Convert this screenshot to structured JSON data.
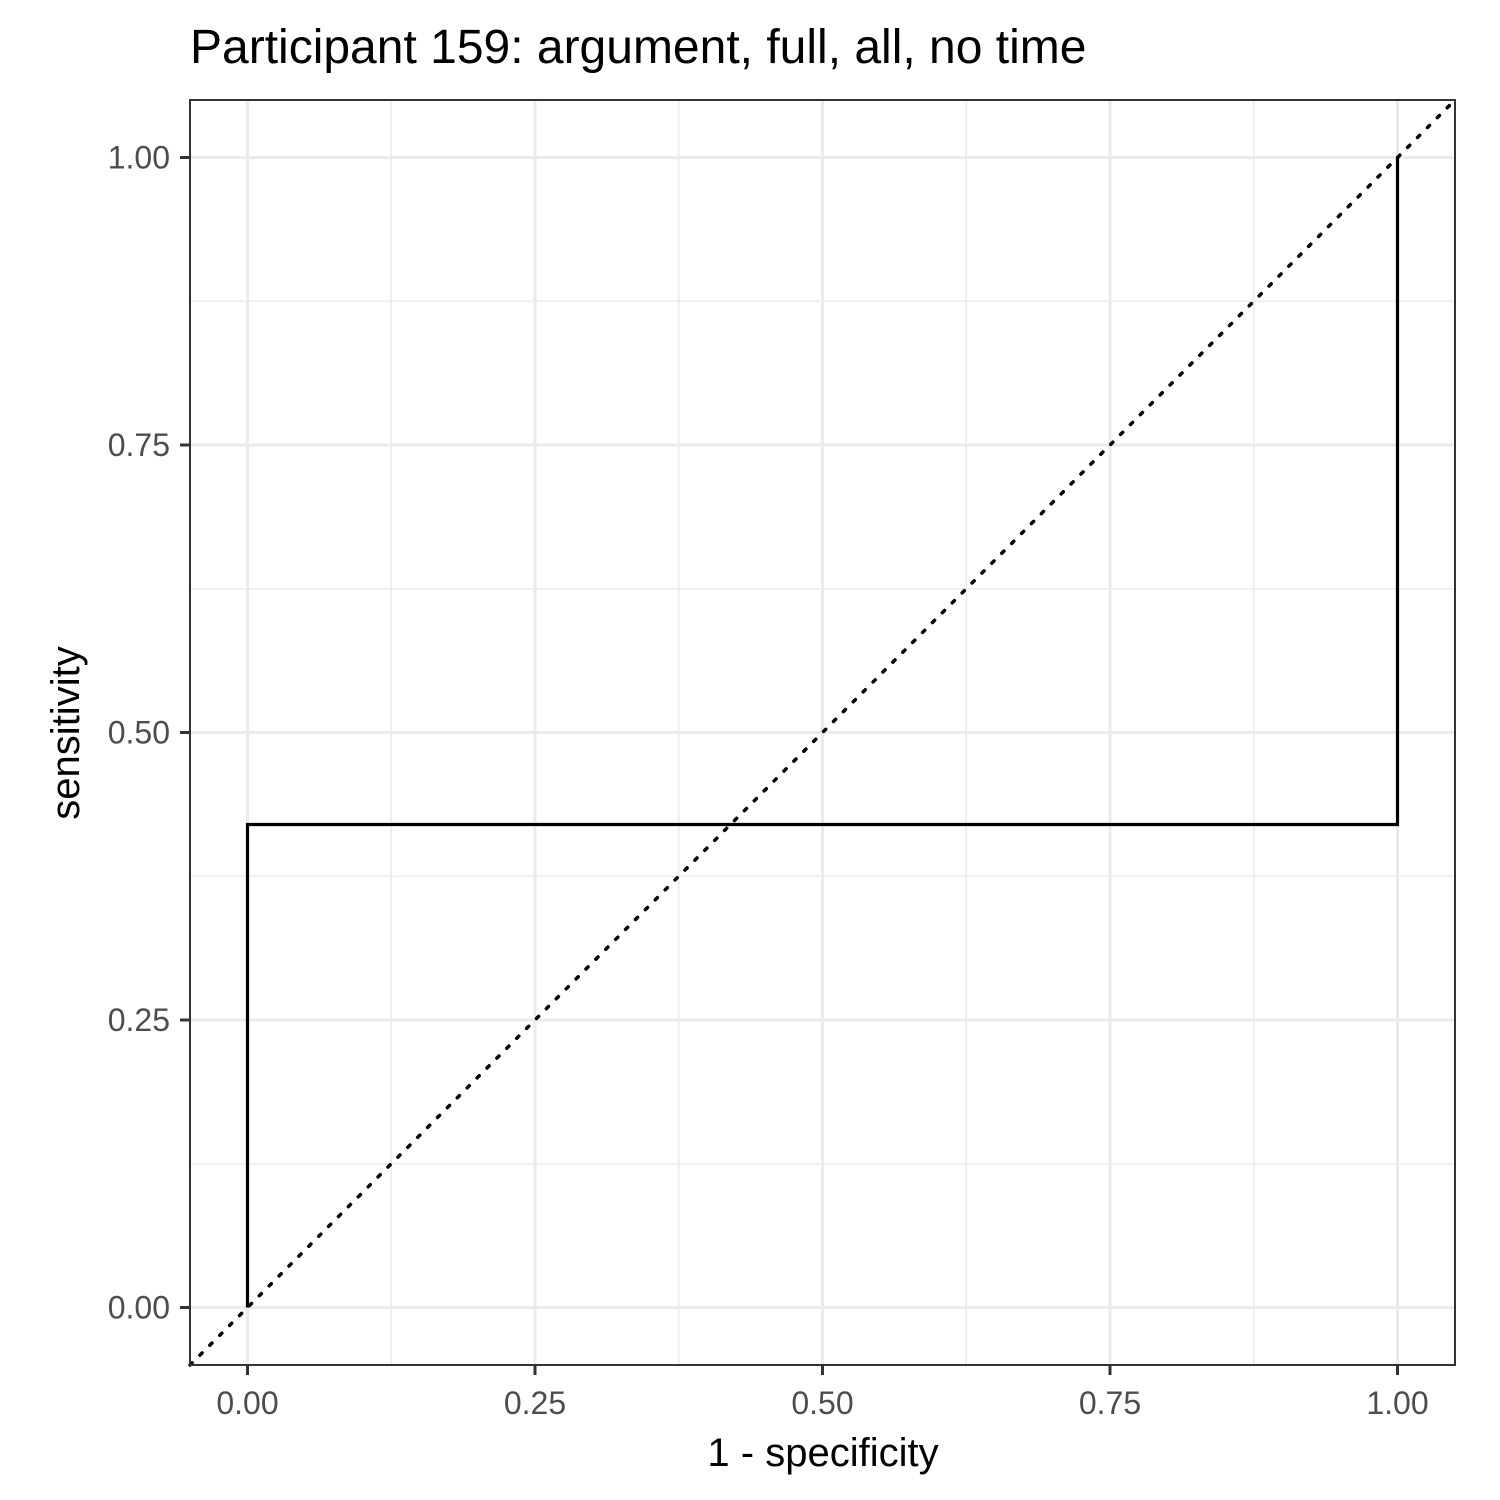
{
  "chart_data": {
    "type": "line",
    "title": "Participant 159: argument, full, all, no time",
    "xlabel": "1 - specificity",
    "ylabel": "sensitivity",
    "xlim": [
      -0.05,
      1.05
    ],
    "ylim": [
      -0.05,
      1.05
    ],
    "x_ticks": [
      0,
      0.25,
      0.5,
      0.75,
      1
    ],
    "y_ticks": [
      0,
      0.25,
      0.5,
      0.75,
      1
    ],
    "x_tick_labels": [
      "0.00",
      "0.25",
      "0.50",
      "0.75",
      "1.00"
    ],
    "y_tick_labels": [
      "0.00",
      "0.25",
      "0.50",
      "0.75",
      "1.00"
    ],
    "grid": true,
    "series": [
      {
        "style": "step",
        "color": "#000000",
        "x": [
          0,
          0,
          1,
          1
        ],
        "y": [
          0,
          0.42,
          0.42,
          1
        ]
      }
    ],
    "reference_line": {
      "style": "dotted",
      "color": "#000000",
      "slope": 1,
      "intercept": 0
    }
  }
}
